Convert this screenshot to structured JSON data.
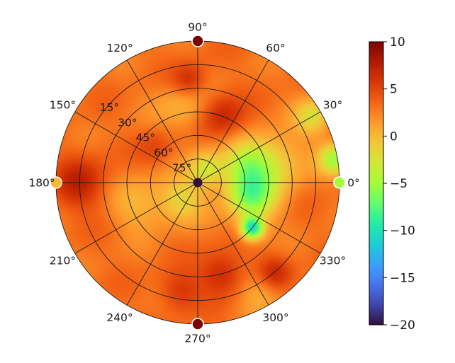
{
  "chart_data": {
    "type": "heatmap",
    "projection": "polar",
    "title": "",
    "angular_ticks": [
      "0°",
      "30°",
      "60°",
      "90°",
      "120°",
      "150°",
      "180°",
      "210°",
      "240°",
      "270°",
      "300°",
      "330°"
    ],
    "radial_ticks": [
      "15°",
      "30°",
      "45°",
      "60°",
      "75°"
    ],
    "radial_tick_values": [
      15,
      30,
      45,
      60,
      75
    ],
    "radial_max": 90,
    "angular_tick_values": [
      0,
      30,
      60,
      90,
      120,
      150,
      180,
      210,
      240,
      270,
      300,
      330
    ],
    "grid": true,
    "colormap": "turbo",
    "colorbar": {
      "position": "right",
      "range": [
        -20,
        10
      ],
      "tick_values": [
        10,
        5,
        0,
        -5,
        -10,
        -15,
        -20
      ],
      "tick_labels": [
        "10",
        "5",
        "0",
        "−5",
        "−10",
        "−15",
        "−20"
      ]
    },
    "baseline_value": 3,
    "field_features": [
      {
        "az": 320,
        "el": 45,
        "value": -9.5,
        "sigma": 5
      },
      {
        "az": 345,
        "el": 55,
        "value": -5.5,
        "sigma": 11
      },
      {
        "az": 20,
        "el": 58,
        "value": -3,
        "sigma": 11
      },
      {
        "az": 15,
        "el": 40,
        "value": -1.5,
        "sigma": 13
      },
      {
        "az": 60,
        "el": 80,
        "value": -2.5,
        "sigma": 8
      },
      {
        "az": 225,
        "el": 75,
        "value": -1.5,
        "sigma": 10
      },
      {
        "az": 200,
        "el": 50,
        "value": 0,
        "sigma": 12
      },
      {
        "az": 100,
        "el": 40,
        "value": 0,
        "sigma": 12
      },
      {
        "az": 10,
        "el": 2,
        "value": -4.5,
        "sigma": 7
      },
      {
        "az": 30,
        "el": 6,
        "value": -2,
        "sigma": 8
      },
      {
        "az": 300,
        "el": 10,
        "value": 0,
        "sigma": 10
      },
      {
        "az": 95,
        "el": 25,
        "value": 7,
        "sigma": 8
      },
      {
        "az": 70,
        "el": 45,
        "value": 7,
        "sigma": 10
      },
      {
        "az": 180,
        "el": 15,
        "value": 7,
        "sigma": 12
      },
      {
        "az": 285,
        "el": 30,
        "value": 7,
        "sigma": 10
      },
      {
        "az": 310,
        "el": 15,
        "value": 7,
        "sigma": 8
      },
      {
        "az": 260,
        "el": 20,
        "value": 6,
        "sigma": 9
      },
      {
        "az": 140,
        "el": 55,
        "value": 5,
        "sigma": 8
      }
    ],
    "markers": [
      {
        "az": 0,
        "el": 0,
        "value": -5
      },
      {
        "az": 90,
        "el": 0,
        "value": 10
      },
      {
        "az": 180,
        "el": 0,
        "value": 0
      },
      {
        "az": 270,
        "el": 0,
        "value": 10
      },
      {
        "az": 0,
        "el": 90,
        "value": -20
      }
    ]
  }
}
